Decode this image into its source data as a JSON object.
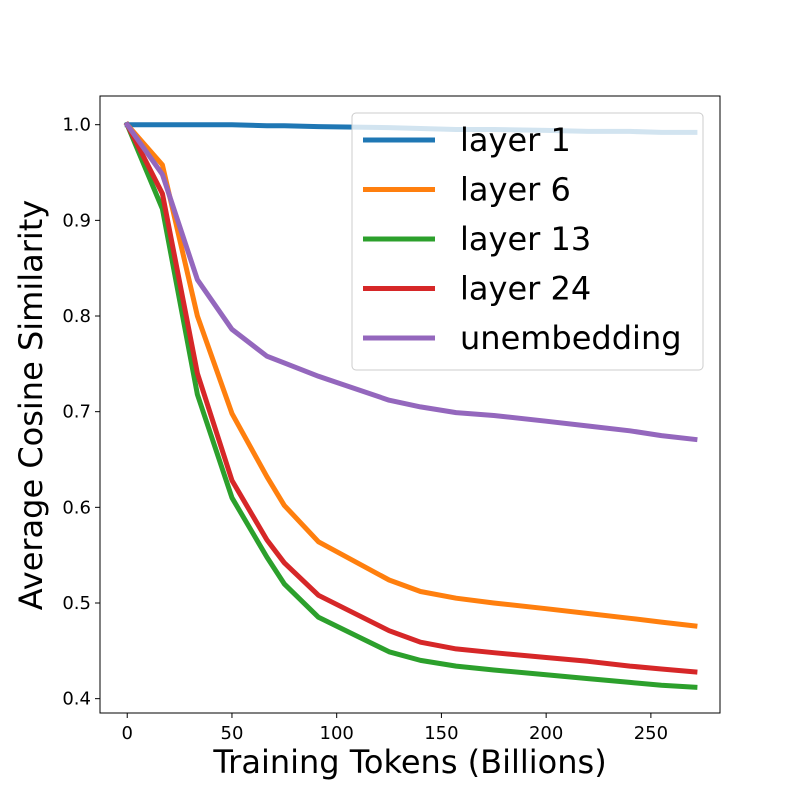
{
  "chart_data": {
    "type": "line",
    "xlabel": "Training Tokens (Billions)",
    "ylabel": "Average Cosine Similarity",
    "xlim": [
      -13,
      283
    ],
    "ylim": [
      0.385,
      1.03
    ],
    "xticks": [
      0,
      50,
      100,
      150,
      200,
      250
    ],
    "yticks": [
      0.4,
      0.5,
      0.6,
      0.7,
      0.8,
      0.9,
      1.0
    ],
    "xtick_labels": [
      "0",
      "50",
      "100",
      "150",
      "200",
      "250"
    ],
    "ytick_labels": [
      "0.4",
      "0.5",
      "0.6",
      "0.7",
      "0.8",
      "0.9",
      "1.0"
    ],
    "grid": false,
    "legend_position": "top-right",
    "x": [
      0,
      16.8,
      33.5,
      50,
      66.7,
      75,
      91.3,
      125,
      140,
      157,
      175,
      200,
      220,
      240,
      255,
      271
    ],
    "series": [
      {
        "name": "layer 1",
        "color": "#1f77b4",
        "values": [
          1.0,
          1.0,
          1.0,
          1.0,
          0.999,
          0.999,
          0.998,
          0.997,
          0.996,
          0.995,
          0.995,
          0.994,
          0.993,
          0.993,
          0.992,
          0.992
        ]
      },
      {
        "name": "layer 6",
        "color": "#ff7f0e",
        "values": [
          1.0,
          0.958,
          0.8,
          0.698,
          0.632,
          0.602,
          0.564,
          0.524,
          0.512,
          0.505,
          0.5,
          0.494,
          0.489,
          0.484,
          0.48,
          0.476
        ]
      },
      {
        "name": "layer 13",
        "color": "#2ca02c",
        "values": [
          1.0,
          0.912,
          0.718,
          0.61,
          0.548,
          0.52,
          0.485,
          0.449,
          0.44,
          0.434,
          0.43,
          0.425,
          0.421,
          0.417,
          0.414,
          0.412
        ]
      },
      {
        "name": "layer 24",
        "color": "#d62728",
        "values": [
          1.0,
          0.928,
          0.74,
          0.628,
          0.566,
          0.542,
          0.508,
          0.471,
          0.459,
          0.452,
          0.448,
          0.443,
          0.439,
          0.434,
          0.431,
          0.428
        ]
      },
      {
        "name": "unembedding",
        "color": "#9467bd",
        "values": [
          1.0,
          0.948,
          0.838,
          0.786,
          0.758,
          0.751,
          0.737,
          0.712,
          0.705,
          0.699,
          0.696,
          0.69,
          0.685,
          0.68,
          0.675,
          0.671
        ]
      }
    ]
  }
}
